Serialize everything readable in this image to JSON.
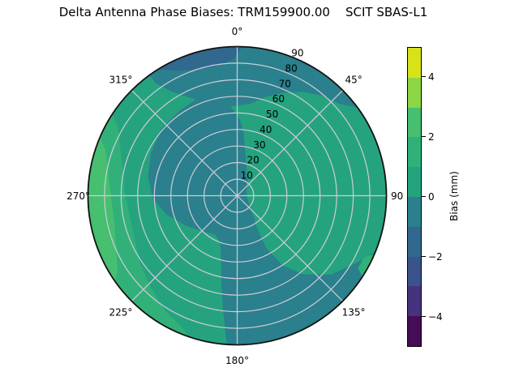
{
  "title": "Delta Antenna Phase Biases: TRM159900.00    SCIT SBAS-L1",
  "chart_data": {
    "type": "heatmap",
    "projection": "polar",
    "description": "Polar filled-contour map of antenna phase bias vs azimuth (0-360 deg, 0 at top, clockwise) and zenith-style radial coordinate 0-90",
    "grid_on": true,
    "grid_color": "#cfccd9",
    "outline_color": "#111111",
    "angle_labels": [
      "0°",
      "45°",
      "90",
      "135°",
      "180°",
      "225°",
      "270°",
      "315°"
    ],
    "radial_ticks": [
      10,
      20,
      30,
      40,
      50,
      60,
      70,
      80,
      90
    ],
    "radial_tick_angle_deg": 22.5,
    "bins": {
      "-5..-4": "#450d55",
      "-4..-3": "#45337e",
      "-3..-2": "#3a538b",
      "-2..-1": "#30688e",
      "-1..0": "#2a808c",
      "0..1": "#25a37f",
      "1..2": "#31b179",
      "2..3": "#46bf70",
      "3..4": "#8cd646",
      "4..5": "#d8e219"
    },
    "background_bin": "0..1",
    "regions": [
      {
        "name": "center-west-south-swath",
        "bias_bin_mm": "-1..0",
        "points": [
          [
            356,
            54
          ],
          [
            2,
            46
          ],
          [
            6,
            38
          ],
          [
            10,
            28
          ],
          [
            18,
            18
          ],
          [
            32,
            12
          ],
          [
            48,
            8
          ],
          [
            70,
            6
          ],
          [
            100,
            6
          ],
          [
            125,
            9
          ],
          [
            140,
            15
          ],
          [
            148,
            22
          ],
          [
            151,
            36
          ],
          [
            147,
            50
          ],
          [
            140,
            62
          ],
          [
            130,
            74
          ],
          [
            118,
            84
          ],
          [
            112,
            90
          ],
          [
            122,
            90
          ],
          [
            132,
            90
          ],
          [
            142,
            90
          ],
          [
            152,
            90
          ],
          [
            162,
            90
          ],
          [
            172,
            90
          ],
          [
            180,
            90
          ],
          [
            184,
            90
          ],
          [
            187,
            70
          ],
          [
            190,
            55
          ],
          [
            194,
            40
          ],
          [
            200,
            30
          ],
          [
            210,
            27
          ],
          [
            224,
            30
          ],
          [
            240,
            36
          ],
          [
            255,
            44
          ],
          [
            268,
            51
          ],
          [
            282,
            55
          ],
          [
            296,
            58
          ],
          [
            312,
            61
          ],
          [
            326,
            62
          ],
          [
            336,
            63
          ],
          [
            344,
            62
          ],
          [
            352,
            59
          ]
        ]
      },
      {
        "name": "north-rim-band",
        "bias_bin_mm": "-1..0",
        "points": [
          [
            324,
            90
          ],
          [
            334,
            90
          ],
          [
            344,
            90
          ],
          [
            354,
            90
          ],
          [
            4,
            90
          ],
          [
            14,
            90
          ],
          [
            24,
            90
          ],
          [
            34,
            90
          ],
          [
            44,
            90
          ],
          [
            54,
            90
          ],
          [
            48,
            83
          ],
          [
            40,
            79
          ],
          [
            32,
            74
          ],
          [
            24,
            68
          ],
          [
            16,
            62
          ],
          [
            8,
            56
          ],
          [
            358,
            54
          ],
          [
            348,
            57
          ],
          [
            338,
            62
          ],
          [
            328,
            74
          ],
          [
            324,
            84
          ]
        ]
      },
      {
        "name": "north-dark-notch",
        "bias_bin_mm": "-2..-1",
        "points": [
          [
            328,
            90
          ],
          [
            336,
            90
          ],
          [
            344,
            90
          ],
          [
            352,
            90
          ],
          [
            0,
            90
          ],
          [
            2,
            90
          ],
          [
            358,
            82
          ],
          [
            350,
            79
          ],
          [
            342,
            80
          ],
          [
            334,
            84
          ]
        ]
      },
      {
        "name": "west-crescent",
        "bias_bin_mm": "1..2",
        "points": [
          [
            199,
            90
          ],
          [
            209,
            90
          ],
          [
            219,
            90
          ],
          [
            229,
            90
          ],
          [
            239,
            90
          ],
          [
            249,
            90
          ],
          [
            259,
            90
          ],
          [
            269,
            90
          ],
          [
            279,
            90
          ],
          [
            289,
            90
          ],
          [
            299,
            90
          ],
          [
            303,
            90
          ],
          [
            300,
            83
          ],
          [
            292,
            76
          ],
          [
            283,
            71
          ],
          [
            272,
            68
          ],
          [
            260,
            66
          ],
          [
            248,
            67
          ],
          [
            236,
            71
          ],
          [
            224,
            76
          ],
          [
            212,
            82
          ],
          [
            203,
            86
          ]
        ]
      },
      {
        "name": "west-rim-crescent",
        "bias_bin_mm": "2..3",
        "points": [
          [
            235,
            90
          ],
          [
            245,
            90
          ],
          [
            255,
            90
          ],
          [
            265,
            90
          ],
          [
            275,
            90
          ],
          [
            285,
            90
          ],
          [
            293,
            90
          ],
          [
            289,
            84
          ],
          [
            280,
            79
          ],
          [
            269,
            76
          ],
          [
            257,
            76
          ],
          [
            246,
            80
          ],
          [
            238,
            85
          ]
        ]
      },
      {
        "name": "southeast-rim-sliver",
        "bias_bin_mm": "1..2",
        "points": [
          [
            113,
            90
          ],
          [
            118,
            90
          ],
          [
            123,
            90
          ],
          [
            121,
            85
          ],
          [
            116,
            85
          ]
        ]
      }
    ],
    "colorbar": {
      "label": "Bias (mm)",
      "range": [
        -5,
        5
      ],
      "ticks": [
        4,
        2,
        0,
        -2,
        -4
      ],
      "segment_bins_top_to_bottom": [
        "4..5",
        "3..4",
        "2..3",
        "1..2",
        "0..1",
        "-1..0",
        "-2..-1",
        "-3..-2",
        "-4..-3",
        "-5..-4"
      ]
    }
  }
}
